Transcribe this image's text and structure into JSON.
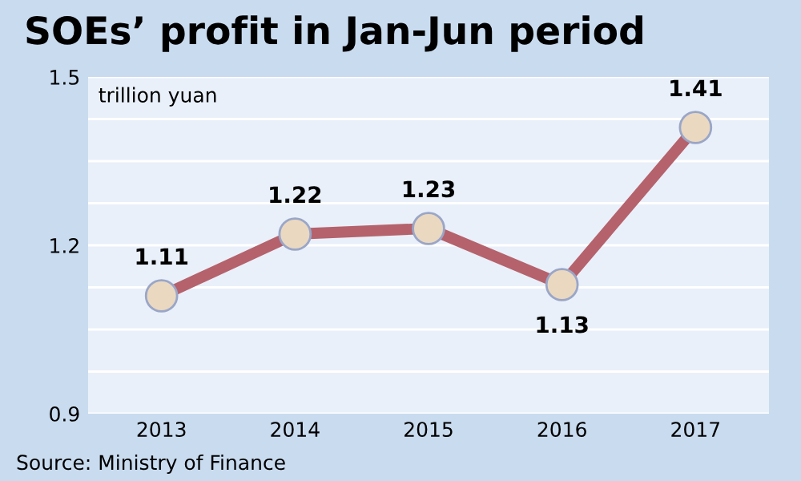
{
  "chart_data": {
    "type": "line",
    "title": "SOEs’ profit in Jan-Jun period",
    "ylabel": "trillion yuan",
    "categories": [
      "2013",
      "2014",
      "2015",
      "2016",
      "2017"
    ],
    "series": [
      {
        "color": "#b5626c",
        "values": [
          1.11,
          1.22,
          1.23,
          1.13,
          1.41
        ]
      }
    ],
    "ylim": [
      0.9,
      1.5
    ],
    "yticks": [
      0.9,
      {
        "value": 0.975,
        "label": null
      },
      {
        "value": 1.05,
        "label": null
      },
      {
        "value": 1.125,
        "label": null
      },
      1.2,
      {
        "value": 1.275,
        "label": null
      },
      {
        "value": 1.35,
        "label": null
      },
      {
        "value": 1.425,
        "label": null
      },
      1.5
    ],
    "grid": "y",
    "marker": "circle",
    "line_style": "solid",
    "data_labels": true,
    "annotations": [
      "Source: Ministry of Finance"
    ]
  }
}
